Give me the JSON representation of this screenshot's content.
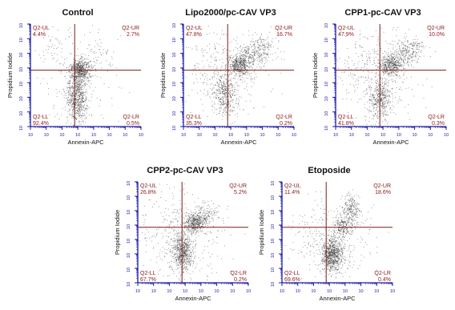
{
  "axes": {
    "x_label": "Annexin-APC",
    "y_label": "Propidium Iodide",
    "x_ticks": [
      "10",
      "10",
      "10",
      "10",
      "10",
      "10",
      "10",
      "10"
    ],
    "y_ticks": [
      "10",
      "10",
      "10",
      "10",
      "10",
      "10",
      "10",
      "10"
    ]
  },
  "quadrant_labels": {
    "ul": "Q2-UL",
    "ur": "Q2-UR",
    "ll": "Q2-LL",
    "lr": "Q2-LR"
  },
  "colors": {
    "gate_line": "#7a1a1a",
    "quadrant_text": "#8b1a1a",
    "axis": "#1a1aa6",
    "dots": "#222222"
  },
  "chart_data": [
    {
      "type": "scatter",
      "title": "Control",
      "xlabel": "Annexin-APC",
      "ylabel": "Propidium Iodide",
      "scale": "log",
      "quadrants": {
        "ul": "4.4%",
        "ur": "2.7%",
        "ll": "92.4%",
        "lr": "0.5%"
      }
    },
    {
      "type": "scatter",
      "title": "Lipo2000/pc-CAV VP3",
      "xlabel": "Annexin-APC",
      "ylabel": "Propidium Iodide",
      "scale": "log",
      "quadrants": {
        "ul": "47.8%",
        "ur": "16.7%",
        "ll": "35.3%",
        "lr": "0.2%"
      }
    },
    {
      "type": "scatter",
      "title": "CPP1-pc-CAV VP3",
      "xlabel": "Annexin-APC",
      "ylabel": "Propidium Iodide",
      "scale": "log",
      "quadrants": {
        "ul": "47.9%",
        "ur": "10.0%",
        "ll": "41.8%",
        "lr": "0.3%"
      }
    },
    {
      "type": "scatter",
      "title": "CPP2-pc-CAV VP3",
      "xlabel": "Annexin-APC",
      "ylabel": "Propidium Iodide",
      "scale": "log",
      "quadrants": {
        "ul": "26.8%",
        "ur": "5.2%",
        "ll": "67.7%",
        "lr": "0.2%"
      }
    },
    {
      "type": "scatter",
      "title": "Etoposide",
      "xlabel": "Annexin-APC",
      "ylabel": "Propidium Iodide",
      "scale": "log",
      "quadrants": {
        "ul": "11.4%",
        "ur": "18.6%",
        "ll": "69.6%",
        "lr": "0.4%"
      }
    }
  ]
}
